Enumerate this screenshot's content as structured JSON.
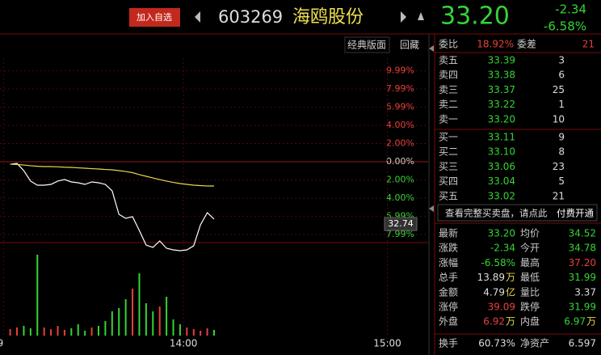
{
  "header": {
    "add_button": "加入自选",
    "code": "603269",
    "name": "海鸥股份",
    "price": "33.20",
    "change": "-2.34",
    "change_pct": "-6.58%"
  },
  "toolbar": {
    "layout": "经典版面",
    "hide": "回藏"
  },
  "chart_data": {
    "type": "line",
    "x": [
      789,
      791,
      793,
      795,
      797,
      799,
      801,
      803,
      805,
      807,
      809,
      811,
      813,
      815,
      817,
      819,
      821,
      823,
      825,
      827,
      829,
      831,
      833,
      835,
      837,
      839,
      841,
      843,
      845,
      847,
      849
    ],
    "series": [
      {
        "name": "价格",
        "color": "#ffffff",
        "values": [
          -0.27,
          -0.18,
          -0.98,
          -2.13,
          -2.58,
          -2.58,
          -2.49,
          -2.13,
          -1.96,
          -2.22,
          -2.31,
          -2.49,
          -2.22,
          -2.31,
          -2.49,
          -3.2,
          -5.78,
          -6.22,
          -6.04,
          -7.56,
          -9.16,
          -9.42,
          -8.71,
          -9.51,
          -9.69,
          -9.78,
          -9.69,
          -9.24,
          -6.93,
          -5.6,
          -6.31
        ]
      },
      {
        "name": "均价",
        "color": "#e8d84a",
        "values": [
          -0.27,
          -0.3,
          -0.36,
          -0.44,
          -0.5,
          -0.53,
          -0.53,
          -0.56,
          -0.6,
          -0.62,
          -0.67,
          -0.71,
          -0.76,
          -0.8,
          -0.85,
          -0.89,
          -0.98,
          -1.07,
          -1.2,
          -1.42,
          -1.6,
          -1.78,
          -1.96,
          -2.13,
          -2.27,
          -2.4,
          -2.49,
          -2.58,
          -2.62,
          -2.67,
          -2.67
        ]
      }
    ],
    "volume": [
      8,
      10,
      12,
      9,
      100,
      10,
      8,
      12,
      7,
      9,
      14,
      6,
      10,
      12,
      18,
      30,
      34,
      45,
      58,
      77,
      40,
      30,
      36,
      48,
      20,
      14,
      10,
      8,
      6,
      9,
      7
    ],
    "xlim": [
      786,
      912
    ],
    "xticks": [
      {
        "value": 787,
        "label": "9"
      },
      {
        "value": 840,
        "label": "14:00"
      },
      {
        "value": 900,
        "label": "15:00"
      }
    ],
    "ylim": [
      -8.89,
      11.38
    ],
    "yticks": [
      {
        "value": 9.99,
        "label": "9.99%"
      },
      {
        "value": 7.99,
        "label": "7.99%"
      },
      {
        "value": 5.99,
        "label": "5.99%"
      },
      {
        "value": 4,
        "label": "4.00%"
      },
      {
        "value": 2,
        "label": "2.00%"
      },
      {
        "value": 0,
        "label": "0.00%"
      },
      {
        "value": -2,
        "label": "2.00%"
      },
      {
        "value": -4,
        "label": "4.00%"
      },
      {
        "value": -5.99,
        "label": "5.99%"
      },
      {
        "value": -7.99,
        "label": "7.99%"
      }
    ],
    "cursor_label": "32.74",
    "grid": true
  },
  "order_book": {
    "ratio": {
      "label": "委比",
      "value": "18.92%"
    },
    "diff": {
      "label": "委差",
      "value": "21"
    },
    "asks": [
      [
        "卖五",
        "33.39",
        "3"
      ],
      [
        "卖四",
        "33.38",
        "6"
      ],
      [
        "卖三",
        "33.37",
        "25"
      ],
      [
        "卖二",
        "33.22",
        "1"
      ],
      [
        "卖一",
        "33.20",
        "10"
      ]
    ],
    "bids": [
      [
        "买一",
        "33.11",
        "9"
      ],
      [
        "买二",
        "33.10",
        "8"
      ],
      [
        "买三",
        "33.06",
        "23"
      ],
      [
        "买四",
        "33.04",
        "5"
      ],
      [
        "买五",
        "33.02",
        "21"
      ]
    ],
    "notice": "查看完整买卖盘，请点此",
    "upgrade": "付费开通"
  },
  "stats": [
    [
      {
        "label": "最新",
        "value": "33.20"
      },
      {
        "label": "均价",
        "value": "34.52"
      }
    ],
    [
      {
        "label": "涨跌",
        "value": "-2.34"
      },
      {
        "label": "今开",
        "value": "34.78"
      }
    ],
    [
      {
        "label": "涨幅",
        "value": "-6.58%"
      },
      {
        "label": "最高",
        "value": "37.20"
      }
    ],
    [
      {
        "label": "总手",
        "value": "13.89",
        "unit": "万"
      },
      {
        "label": "最低",
        "value": "31.99"
      }
    ],
    [
      {
        "label": "金额",
        "value": "4.79",
        "unit": "亿"
      },
      {
        "label": "量比",
        "value": "3.37"
      }
    ],
    [
      {
        "label": "涨停",
        "value": "39.09"
      },
      {
        "label": "跌停",
        "value": "31.99"
      }
    ],
    [
      {
        "label": "外盘",
        "value": "6.92",
        "unit": "万"
      },
      {
        "label": "内盘",
        "value": "6.97",
        "unit": "万"
      }
    ],
    [
      {
        "label": "换手",
        "value": "60.73%"
      },
      {
        "label": "净资产",
        "value": "6.597"
      }
    ]
  ]
}
